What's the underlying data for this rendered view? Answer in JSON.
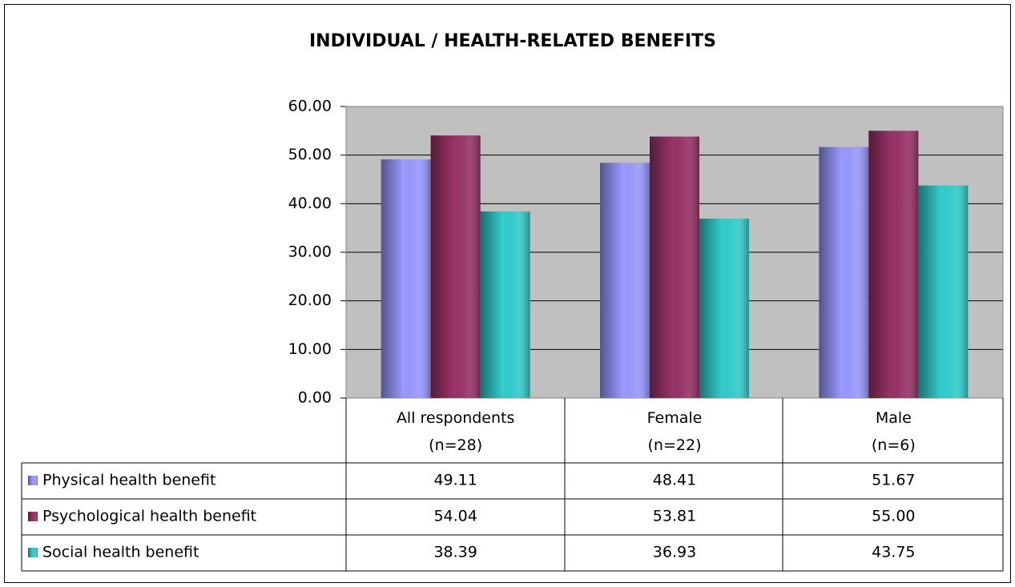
{
  "chart_data": {
    "type": "bar",
    "title": "INDIVIDUAL / HEALTH-RELATED BENEFITS",
    "categories": [
      "All respondents\n(n=28)",
      "Female\n(n=22)",
      "Male\n(n=6)"
    ],
    "series": [
      {
        "name": "Physical health benefit",
        "color": "#9999ff",
        "values": [
          49.11,
          48.41,
          51.67
        ],
        "value_labels": [
          "49.11",
          "48.41",
          "51.67"
        ]
      },
      {
        "name": "Psychological health benefit",
        "color": "#993366",
        "values": [
          54.04,
          53.81,
          55
        ],
        "value_labels": [
          "54.04",
          "53.81",
          "55.00"
        ]
      },
      {
        "name": "Social health benefit",
        "color": "#33cccc",
        "values": [
          38.39,
          36.93,
          43.75
        ],
        "value_labels": [
          "38.39",
          "36.93",
          "43.75"
        ]
      }
    ],
    "ylim": [
      0,
      60
    ],
    "yticks": [
      {
        "value": 0,
        "label": "0.00"
      },
      {
        "value": 10,
        "label": "10.00"
      },
      {
        "value": 20,
        "label": "20.00"
      },
      {
        "value": 30,
        "label": "30.00"
      },
      {
        "value": 40,
        "label": "40.00"
      },
      {
        "value": 50,
        "label": "50.00"
      },
      {
        "value": 60,
        "label": "60.00"
      }
    ],
    "grid": true,
    "plot_background": "#c0c0c0"
  }
}
